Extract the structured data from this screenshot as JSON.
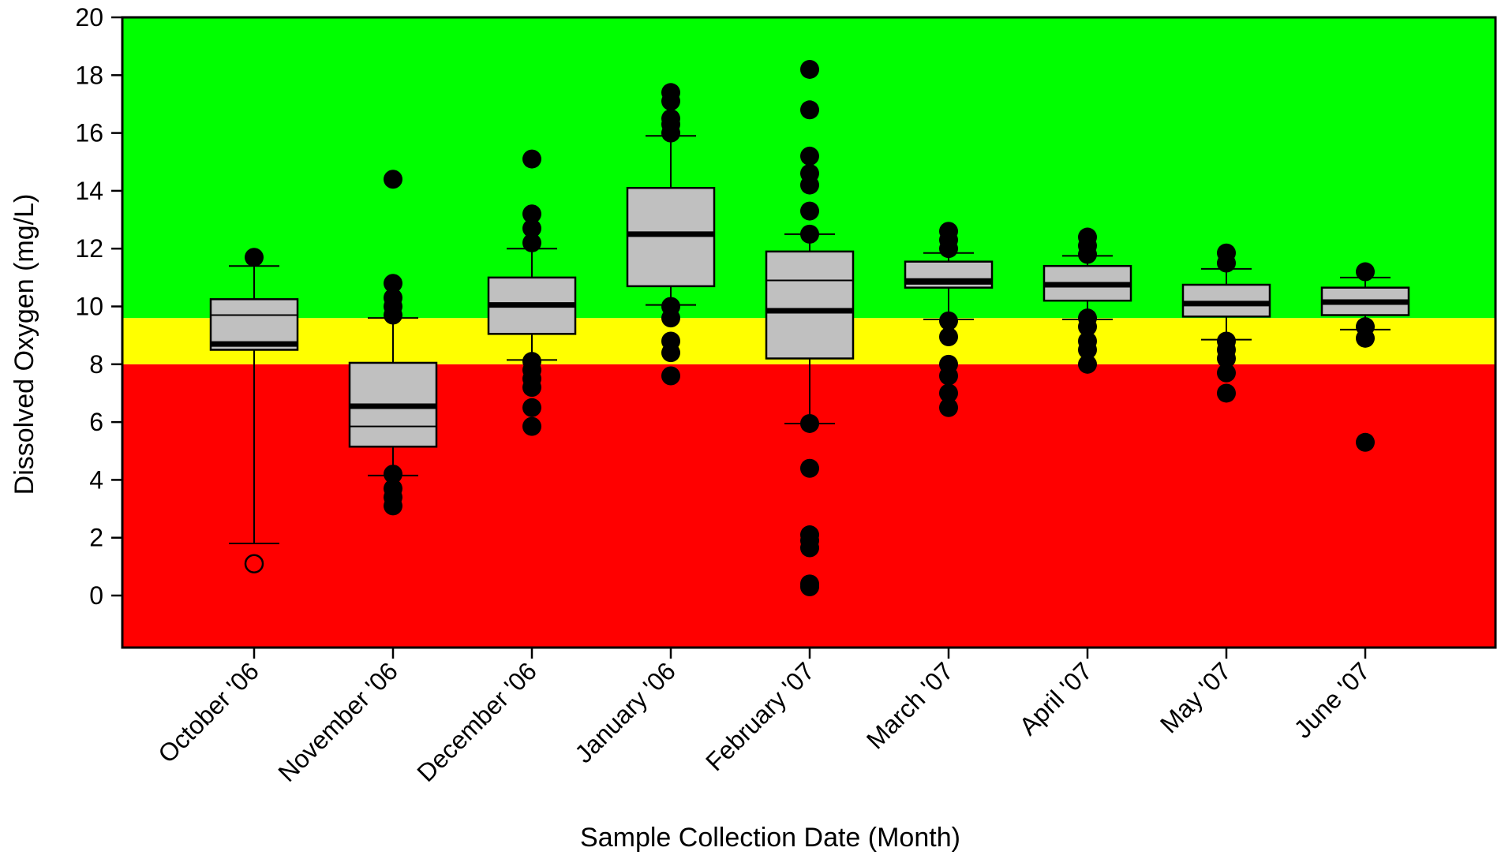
{
  "chart_data": {
    "type": "box",
    "xlabel": "Sample Collection Date (Month)",
    "ylabel": "Dissolved Oxygen (mg/L)",
    "ylim": [
      -1.8,
      20
    ],
    "yticks": [
      0,
      2,
      4,
      6,
      8,
      10,
      12,
      14,
      16,
      18,
      20
    ],
    "grid": false,
    "legend": "none",
    "bands": [
      {
        "from": -1.8,
        "to": 8.0,
        "color": "#ff0000"
      },
      {
        "from": 8.0,
        "to": 9.6,
        "color": "#ffff00"
      },
      {
        "from": 9.6,
        "to": 20,
        "color": "#00ff00"
      }
    ],
    "box_color": "#c0c0c0",
    "categories": [
      "October '06",
      "November '06",
      "December '06",
      "January '06",
      "February '07",
      "March '07",
      "April '07",
      "May '07",
      "June '07"
    ],
    "boxes": [
      {
        "whisker_low": 1.8,
        "q1": 8.5,
        "median": 9.7,
        "mean": 8.7,
        "q3": 10.25,
        "whisker_high": 11.4,
        "outliers": [
          11.7
        ],
        "open_outliers": [
          1.1
        ]
      },
      {
        "whisker_low": 4.15,
        "q1": 5.15,
        "median": 5.85,
        "mean": 6.55,
        "q3": 8.05,
        "whisker_high": 9.6,
        "outliers": [
          14.4,
          10.8,
          10.3,
          10.0,
          9.7,
          4.2,
          3.7,
          3.4,
          3.1
        ],
        "open_outliers": []
      },
      {
        "whisker_low": 8.15,
        "q1": 9.05,
        "median": 10.05,
        "mean": 10.05,
        "q3": 11.0,
        "whisker_high": 12.0,
        "outliers": [
          15.1,
          13.2,
          12.7,
          12.2,
          8.1,
          7.8,
          7.5,
          7.2,
          6.5,
          5.85
        ],
        "open_outliers": []
      },
      {
        "whisker_low": 10.05,
        "q1": 10.7,
        "median": 12.5,
        "mean": 12.5,
        "q3": 14.1,
        "whisker_high": 15.9,
        "outliers": [
          17.4,
          17.1,
          16.5,
          16.3,
          16.0,
          10.0,
          9.6,
          8.8,
          8.4,
          7.6
        ],
        "open_outliers": []
      },
      {
        "whisker_low": 5.95,
        "q1": 8.2,
        "median": 10.9,
        "mean": 9.85,
        "q3": 11.9,
        "whisker_high": 12.5,
        "outliers": [
          18.2,
          16.8,
          15.2,
          14.6,
          14.2,
          13.3,
          12.5,
          5.95,
          4.4,
          2.1,
          1.9,
          1.65,
          0.4,
          0.3
        ],
        "open_outliers": []
      },
      {
        "whisker_low": 9.55,
        "q1": 10.65,
        "median": 10.95,
        "mean": 10.85,
        "q3": 11.55,
        "whisker_high": 11.85,
        "outliers": [
          12.6,
          12.3,
          12.0,
          9.5,
          8.95,
          8.0,
          7.6,
          7.0,
          6.5
        ],
        "open_outliers": []
      },
      {
        "whisker_low": 9.55,
        "q1": 10.2,
        "median": 10.75,
        "mean": 10.75,
        "q3": 11.4,
        "whisker_high": 11.75,
        "outliers": [
          12.4,
          12.1,
          11.8,
          9.6,
          9.3,
          8.8,
          8.5,
          8.0
        ],
        "open_outliers": []
      },
      {
        "whisker_low": 8.85,
        "q1": 9.65,
        "median": 10.1,
        "mean": 10.1,
        "q3": 10.75,
        "whisker_high": 11.3,
        "outliers": [
          11.85,
          11.5,
          8.8,
          8.5,
          8.2,
          7.7,
          7.0
        ],
        "open_outliers": []
      },
      {
        "whisker_low": 9.2,
        "q1": 9.7,
        "median": 10.1,
        "mean": 10.15,
        "q3": 10.65,
        "whisker_high": 11.0,
        "outliers": [
          11.2,
          9.3,
          8.9,
          5.3
        ],
        "open_outliers": []
      }
    ]
  }
}
